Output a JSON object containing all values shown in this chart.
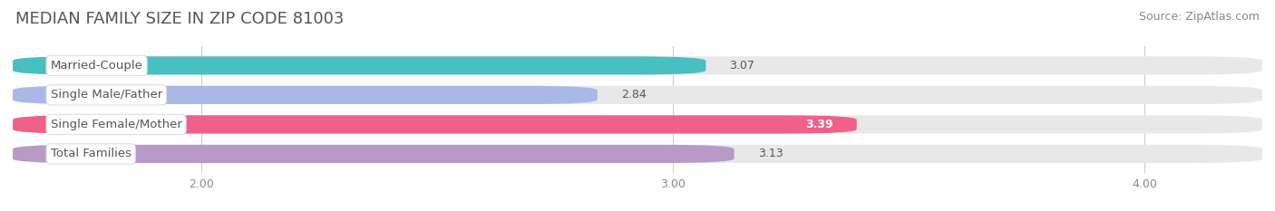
{
  "title": "MEDIAN FAMILY SIZE IN ZIP CODE 81003",
  "source": "Source: ZipAtlas.com",
  "categories": [
    "Married-Couple",
    "Single Male/Father",
    "Single Female/Mother",
    "Total Families"
  ],
  "values": [
    3.07,
    2.84,
    3.39,
    3.13
  ],
  "bar_colors": [
    "#48bfc0",
    "#aab8e8",
    "#f0608a",
    "#b89ac8"
  ],
  "bar_background": "#e8e8e8",
  "value_colors": [
    "#555555",
    "#555555",
    "#ffffff",
    "#555555"
  ],
  "xlim": [
    1.6,
    4.25
  ],
  "xticks": [
    2.0,
    3.0,
    4.0
  ],
  "xtick_labels": [
    "2.00",
    "3.00",
    "4.00"
  ],
  "bar_height": 0.62,
  "figsize": [
    14.06,
    2.33
  ],
  "dpi": 100,
  "title_fontsize": 13,
  "source_fontsize": 9,
  "label_fontsize": 9.5,
  "value_fontsize": 9,
  "tick_fontsize": 9,
  "bg_color": "#ffffff",
  "grid_color": "#cccccc",
  "title_color": "#555555",
  "source_color": "#888888",
  "label_text_color": "#555555"
}
